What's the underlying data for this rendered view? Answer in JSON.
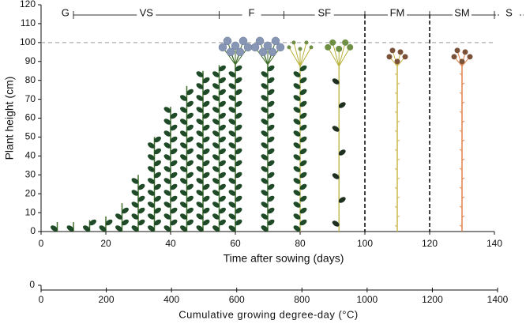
{
  "chart_data": [
    {
      "type": "scatter",
      "y_label": "Plant height (cm)",
      "x_label": "Time after sowing (days)",
      "xlim": [
        0,
        140
      ],
      "xticks": [
        0,
        20,
        40,
        60,
        80,
        100,
        120,
        140
      ],
      "ylim": [
        0,
        120
      ],
      "yticks": [
        0,
        10,
        20,
        30,
        40,
        50,
        60,
        70,
        80,
        90,
        100,
        110,
        120
      ],
      "reference_line": 100,
      "vlines": [
        100,
        120
      ],
      "stages": [
        {
          "label": "G",
          "start": 5,
          "end": 10
        },
        {
          "label": "VS",
          "start": 10,
          "end": 55
        },
        {
          "label": "F",
          "start": 55,
          "end": 75
        },
        {
          "label": "SF",
          "start": 75,
          "end": 100
        },
        {
          "label": "FM",
          "start": 100,
          "end": 120
        },
        {
          "label": "SM",
          "start": 120,
          "end": 140
        },
        {
          "label": "S",
          "start": 140,
          "end": 149,
          "dotted": true
        }
      ],
      "series": [
        {
          "style": "leafy",
          "color": "#1f4a27",
          "stem": "#3f6e2a",
          "x": [
            5,
            10,
            15,
            20,
            25,
            30,
            35,
            40,
            45,
            50,
            55
          ],
          "values": [
            5,
            5,
            6,
            8,
            15,
            30,
            50,
            66,
            77,
            85,
            88
          ]
        },
        {
          "style": "flower",
          "color": "#8796b4",
          "stem": "#3f6e2a",
          "x": [
            60,
            70
          ],
          "values": [
            100,
            100
          ]
        },
        {
          "style": "pod",
          "color": "#6f8f45",
          "stem": "#b9b13a",
          "x": [
            80,
            92
          ],
          "values": [
            100,
            100
          ]
        },
        {
          "style": "capsule",
          "color": "#7a5238",
          "stem": "#c9b84a",
          "x": [
            110
          ],
          "values": [
            100
          ]
        },
        {
          "style": "capsule",
          "color": "#7a5238",
          "stem": "#e0824a",
          "x": [
            130
          ],
          "values": [
            100
          ]
        }
      ]
    },
    {
      "type": "axis",
      "x_label": "Cumulative growing degree-day (°C)",
      "xlim": [
        0,
        1400
      ],
      "xticks": [
        0,
        200,
        400,
        600,
        800,
        1000,
        1200,
        1400
      ],
      "yticks": [
        0
      ]
    }
  ]
}
